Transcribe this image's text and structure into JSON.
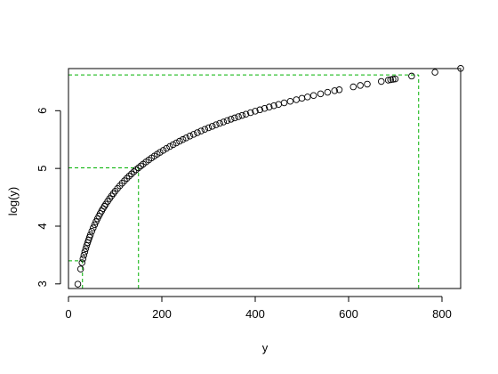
{
  "chart_data": {
    "type": "scatter",
    "title": "",
    "xlabel": "y",
    "ylabel": "log(y)",
    "xlim": [
      0,
      840
    ],
    "ylim": [
      2.92,
      6.73
    ],
    "x_ticks": [
      "0",
      "200",
      "400",
      "600",
      "800"
    ],
    "y_ticks": [
      "3",
      "4",
      "5",
      "6"
    ],
    "grid": false,
    "legend": "none",
    "marker": "open-circle",
    "point_color": "#000000",
    "series": [
      {
        "x": [
          20,
          26,
          29,
          31,
          33,
          35,
          37,
          39,
          41,
          43,
          45,
          47,
          50,
          53,
          56,
          59,
          62,
          65,
          68,
          71,
          74,
          77,
          80,
          84,
          88,
          92,
          96,
          100,
          105,
          110,
          115,
          120,
          125,
          130,
          135,
          140,
          145,
          150,
          155,
          160,
          166,
          172,
          178,
          184,
          190,
          196,
          203,
          210,
          217,
          224,
          231,
          238,
          245,
          252,
          260,
          268,
          276,
          284,
          292,
          300,
          308,
          316,
          324,
          332,
          340,
          348,
          356,
          364,
          372,
          380,
          390,
          400,
          410,
          420,
          430,
          440,
          450,
          462,
          475,
          488,
          500,
          512,
          525,
          540,
          555,
          570,
          580,
          610,
          625,
          640,
          670,
          685,
          690,
          695,
          700,
          735,
          785,
          840
        ],
        "y": [
          2.996,
          3.258,
          3.367,
          3.434,
          3.497,
          3.555,
          3.611,
          3.664,
          3.714,
          3.761,
          3.807,
          3.85,
          3.912,
          3.97,
          4.025,
          4.078,
          4.127,
          4.174,
          4.22,
          4.263,
          4.304,
          4.344,
          4.382,
          4.431,
          4.477,
          4.522,
          4.564,
          4.605,
          4.654,
          4.7,
          4.745,
          4.787,
          4.828,
          4.868,
          4.905,
          4.942,
          4.977,
          5.011,
          5.043,
          5.075,
          5.112,
          5.147,
          5.182,
          5.215,
          5.247,
          5.278,
          5.313,
          5.347,
          5.38,
          5.412,
          5.442,
          5.472,
          5.501,
          5.529,
          5.561,
          5.591,
          5.62,
          5.649,
          5.677,
          5.704,
          5.73,
          5.756,
          5.781,
          5.805,
          5.829,
          5.852,
          5.875,
          5.897,
          5.919,
          5.94,
          5.966,
          5.991,
          6.016,
          6.04,
          6.064,
          6.087,
          6.109,
          6.136,
          6.163,
          6.19,
          6.215,
          6.238,
          6.263,
          6.292,
          6.319,
          6.346,
          6.363,
          6.413,
          6.438,
          6.461,
          6.507,
          6.529,
          6.537,
          6.544,
          6.551,
          6.6,
          6.666,
          6.733
        ]
      }
    ],
    "reference_lines": {
      "color": "#00b000",
      "style": "dashed",
      "segments": [
        {
          "x0": 0,
          "y0": 3.4,
          "x1": 30,
          "y1": 3.4
        },
        {
          "x0": 30,
          "y0": 2.92,
          "x1": 30,
          "y1": 3.4
        },
        {
          "x0": 0,
          "y0": 5.01,
          "x1": 150,
          "y1": 5.01
        },
        {
          "x0": 150,
          "y0": 2.92,
          "x1": 150,
          "y1": 5.01
        },
        {
          "x0": 0,
          "y0": 6.62,
          "x1": 750,
          "y1": 6.62
        },
        {
          "x0": 750,
          "y0": 2.92,
          "x1": 750,
          "y1": 6.62
        }
      ]
    }
  }
}
